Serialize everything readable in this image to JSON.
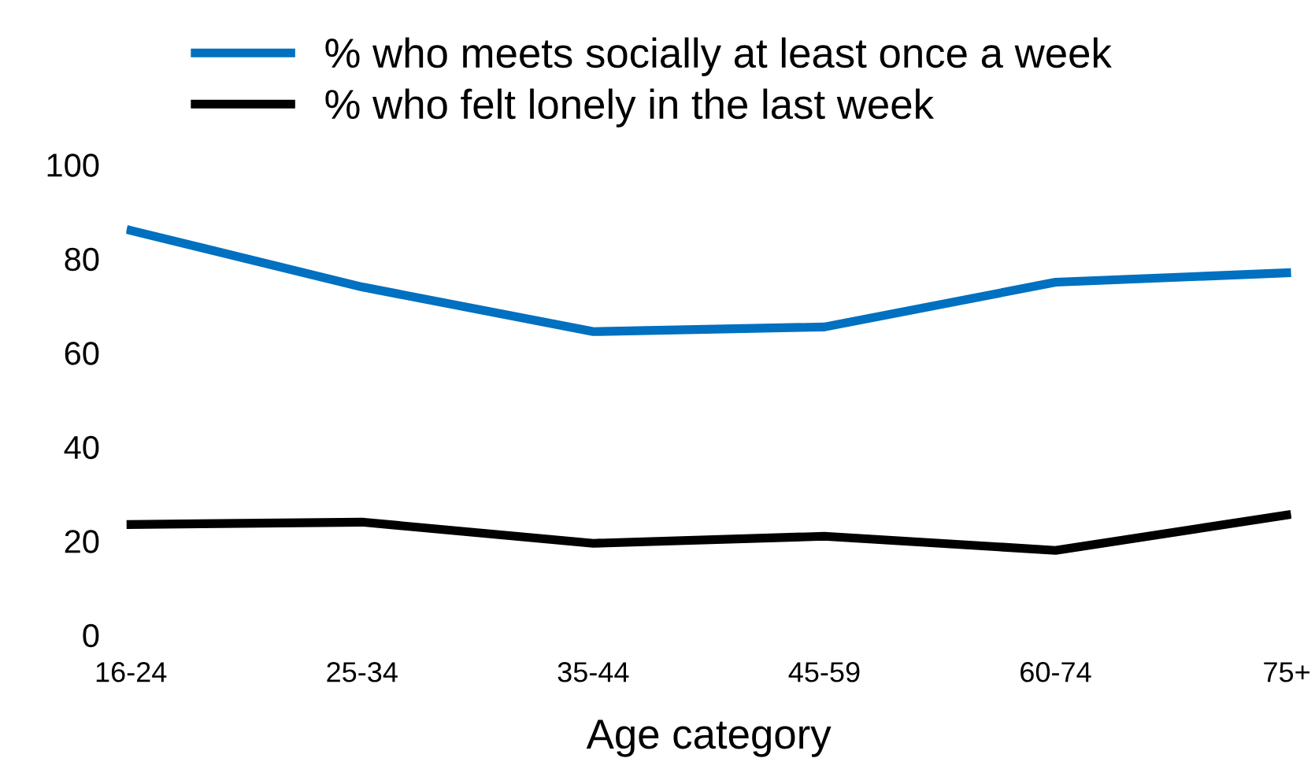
{
  "chart_data": {
    "type": "line",
    "xlabel": "Age category",
    "categories": [
      "16-24",
      "25-34",
      "35-44",
      "45-59",
      "60-74",
      "75+"
    ],
    "series": [
      {
        "name": "% who meets socially at least once a week",
        "color": "#0070c0",
        "values": [
          86,
          74,
          64.5,
          65.5,
          75,
          77
        ]
      },
      {
        "name": "% who felt lonely in the last week",
        "color": "#000000",
        "values": [
          23.5,
          24,
          19.5,
          21,
          18,
          25.5
        ]
      }
    ],
    "ylim": [
      0,
      100
    ],
    "yticks": [
      0,
      20,
      40,
      60,
      80,
      100
    ],
    "grid": false,
    "legend": "top",
    "marker": "none",
    "line_style": "solid"
  }
}
